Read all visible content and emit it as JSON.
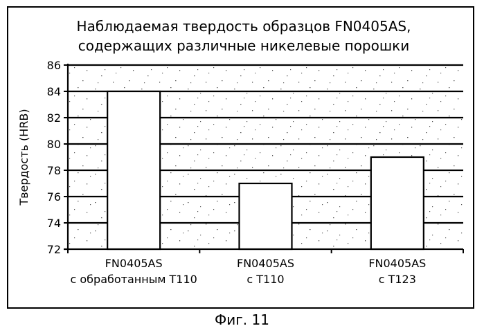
{
  "chart_data": {
    "type": "bar",
    "title_lines": [
      "Наблюдаемая твердость образцов FN0405AS,",
      "содержащих различные никелевые порошки"
    ],
    "ylabel": "Твердость (HRB)",
    "xlabel": "",
    "ylim": [
      72,
      86
    ],
    "yticks": [
      72,
      74,
      76,
      78,
      80,
      82,
      84,
      86
    ],
    "ytick_labels": [
      "72",
      "74",
      "76",
      "78",
      "80",
      "82",
      "84",
      "86"
    ],
    "grid": true,
    "categories": [
      [
        "FN0405AS",
        "с обработанным Т110"
      ],
      [
        "FN0405AS",
        "с Т110"
      ],
      [
        "FN0405AS",
        "с Т123"
      ]
    ],
    "values": [
      84,
      77,
      79
    ]
  },
  "figure_caption": "Фиг. 11",
  "colors": {
    "background": "#ffffff",
    "bar_fill": "#ffffff",
    "lines": "#000000",
    "speckle": "#555555"
  }
}
